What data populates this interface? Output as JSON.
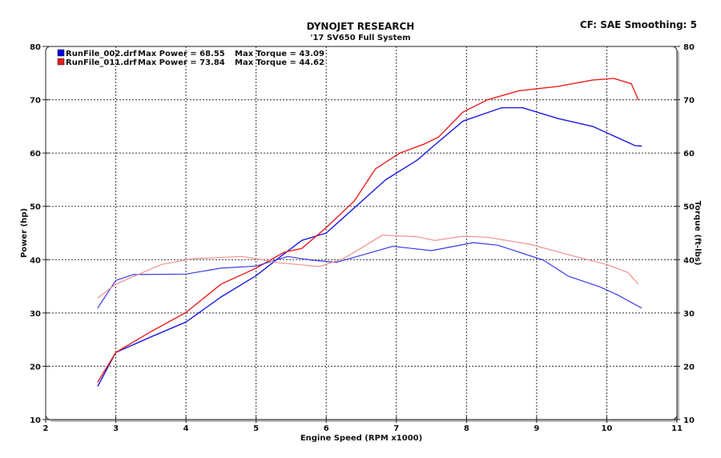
{
  "header": {
    "title": "DYNOJET RESEARCH",
    "subtitle": "'17 SV650 Full System",
    "settings": "CF: SAE  Smoothing: 5"
  },
  "chart_data": {
    "type": "line",
    "xlabel": "Engine Speed (RPM x1000)",
    "ylabel": "Power (hp)",
    "y2label": "Torque (ft-lbs)",
    "xlim": [
      2,
      11
    ],
    "ylim": [
      10,
      80
    ],
    "y2lim": [
      10,
      80
    ],
    "xticks": [
      2,
      3,
      4,
      5,
      6,
      7,
      8,
      9,
      10,
      11
    ],
    "yticks": [
      10,
      20,
      30,
      40,
      50,
      60,
      70,
      80
    ],
    "grid": true,
    "legend_placement": "top-left",
    "legend": [
      {
        "file": "RunFile_002.drf",
        "power_label": "Max Power = 68.55",
        "torque_label": "Max Torque = 43.09",
        "color": "#0000dd"
      },
      {
        "file": "RunFile_011.drf",
        "power_label": "Max Power = 73.84",
        "torque_label": "Max Torque = 44.62",
        "color": "#e02020"
      }
    ],
    "series": [
      {
        "run": "RunFile_002.drf",
        "kind": "power",
        "color": "#1a1ae0",
        "x": [
          2.74,
          3.0,
          3.5,
          4.0,
          4.5,
          5.0,
          5.35,
          5.65,
          6.0,
          6.4,
          6.85,
          7.3,
          7.5,
          7.95,
          8.5,
          8.8,
          9.3,
          9.8,
          10.1,
          10.4,
          10.5
        ],
        "y": [
          16.2,
          22.6,
          25.5,
          28.3,
          33,
          37,
          40.6,
          43.6,
          45,
          49.7,
          55,
          58.7,
          61,
          66,
          68.5,
          68.5,
          66.5,
          65,
          63.2,
          61.4,
          61.3
        ]
      },
      {
        "run": "RunFile_011.drf",
        "kind": "power",
        "color": "#e82020",
        "x": [
          2.74,
          3.0,
          3.5,
          4.0,
          4.5,
          5.0,
          5.4,
          5.65,
          6.0,
          6.4,
          6.7,
          7.05,
          7.4,
          7.6,
          7.95,
          8.3,
          8.75,
          9.3,
          9.8,
          10.1,
          10.35,
          10.45
        ],
        "y": [
          17,
          22.6,
          26.5,
          30.1,
          35.4,
          38.4,
          41.4,
          42.1,
          46,
          51,
          57,
          60,
          61.7,
          63,
          67.7,
          70,
          71.7,
          72.5,
          73.7,
          74,
          73,
          70
        ]
      },
      {
        "run": "RunFile_002.drf",
        "kind": "torque",
        "color": "#3a3ae8",
        "x": [
          2.74,
          3.0,
          3.25,
          4.0,
          4.5,
          5.0,
          5.45,
          5.8,
          6.15,
          6.95,
          7.5,
          8.1,
          8.45,
          9.1,
          9.45,
          9.9,
          10.15,
          10.5
        ],
        "y": [
          30.9,
          36.1,
          37.2,
          37.3,
          38.4,
          38.8,
          40.6,
          39.9,
          39.5,
          42.5,
          41.7,
          43.2,
          42.7,
          39.9,
          36.9,
          34.9,
          33.4,
          30.9
        ]
      },
      {
        "run": "RunFile_011.drf",
        "kind": "torque",
        "color": "#f09090",
        "x": [
          2.74,
          3.0,
          3.65,
          4.1,
          4.8,
          5.35,
          5.9,
          6.25,
          6.8,
          7.3,
          7.55,
          7.95,
          8.3,
          8.9,
          9.55,
          10.0,
          10.3,
          10.45
        ],
        "y": [
          32.8,
          35.4,
          39.1,
          40.2,
          40.6,
          39.4,
          38.7,
          40.2,
          44.6,
          44.3,
          43.6,
          44.4,
          44.2,
          42.9,
          40.6,
          39.1,
          37.6,
          35.4
        ]
      }
    ]
  }
}
